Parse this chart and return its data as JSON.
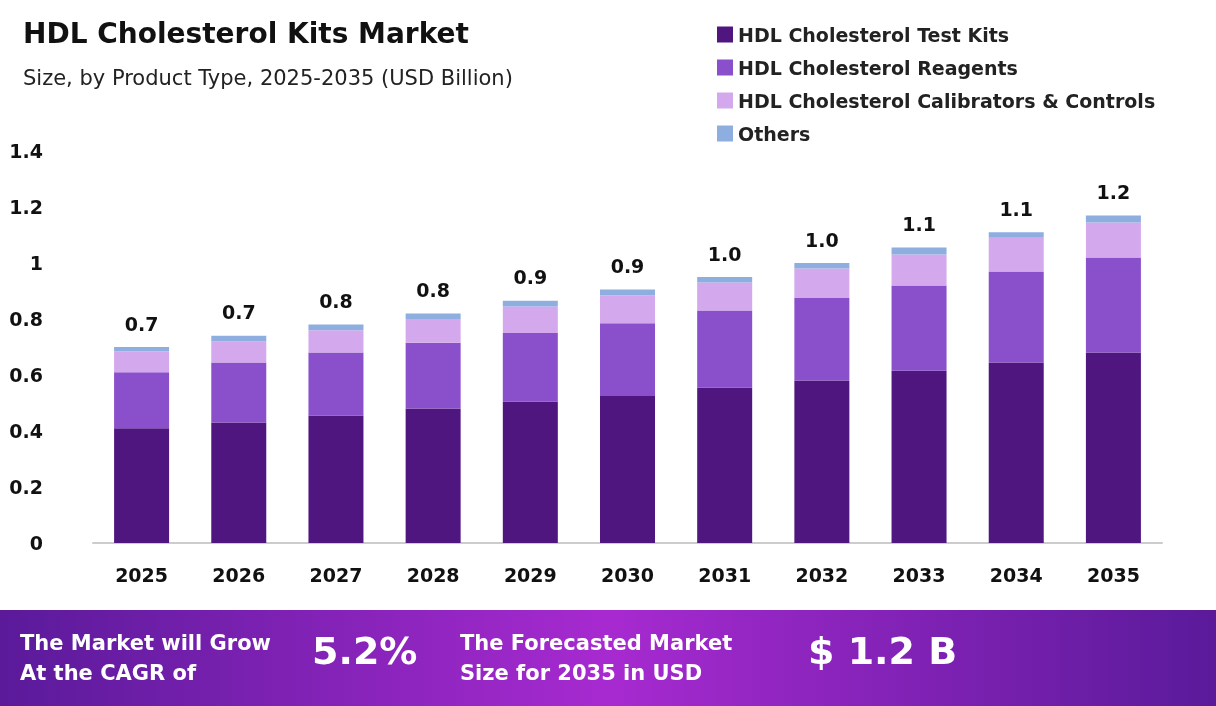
{
  "chart_data": {
    "type": "bar",
    "title": "HDL Cholesterol Kits Market",
    "subtitle": "Size, by Product Type, 2025-2035 (USD Billion)",
    "categories": [
      "2025",
      "2026",
      "2027",
      "2028",
      "2029",
      "2030",
      "2031",
      "2032",
      "2033",
      "2034",
      "2035"
    ],
    "stacked": true,
    "series": [
      {
        "name": "HDL Cholesterol Test Kits",
        "color": "#4f1680",
        "values": [
          0.41,
          0.43,
          0.455,
          0.48,
          0.505,
          0.525,
          0.555,
          0.58,
          0.615,
          0.645,
          0.68
        ]
      },
      {
        "name": "HDL Cholesterol Reagents",
        "color": "#8a4fcb",
        "values": [
          0.2,
          0.215,
          0.225,
          0.235,
          0.245,
          0.26,
          0.275,
          0.295,
          0.305,
          0.325,
          0.34
        ]
      },
      {
        "name": "HDL Cholesterol Calibrators & Controls",
        "color": "#d4a8ec",
        "values": [
          0.075,
          0.075,
          0.08,
          0.085,
          0.095,
          0.1,
          0.1,
          0.105,
          0.11,
          0.12,
          0.125
        ]
      },
      {
        "name": "Others",
        "color": "#8eaee0",
        "values": [
          0.015,
          0.02,
          0.02,
          0.02,
          0.02,
          0.02,
          0.02,
          0.02,
          0.025,
          0.02,
          0.025
        ]
      }
    ],
    "totals": [
      "0.7",
      "0.7",
      "0.8",
      "0.8",
      "0.9",
      "0.9",
      "1.0",
      "1.0",
      "1.1",
      "1.1",
      "1.2"
    ],
    "ylim": [
      0,
      1.4
    ],
    "yticks": [
      0,
      0.2,
      0.4,
      0.6,
      0.8,
      1,
      1.2,
      1.4
    ],
    "grid": false,
    "legend": "top right",
    "annotations": [
      "The Market will Grow\nAt the CAGR of",
      "5.2%",
      "The Forecasted Market\nSize for 2035 in USD",
      "$ 1.2 B"
    ]
  }
}
